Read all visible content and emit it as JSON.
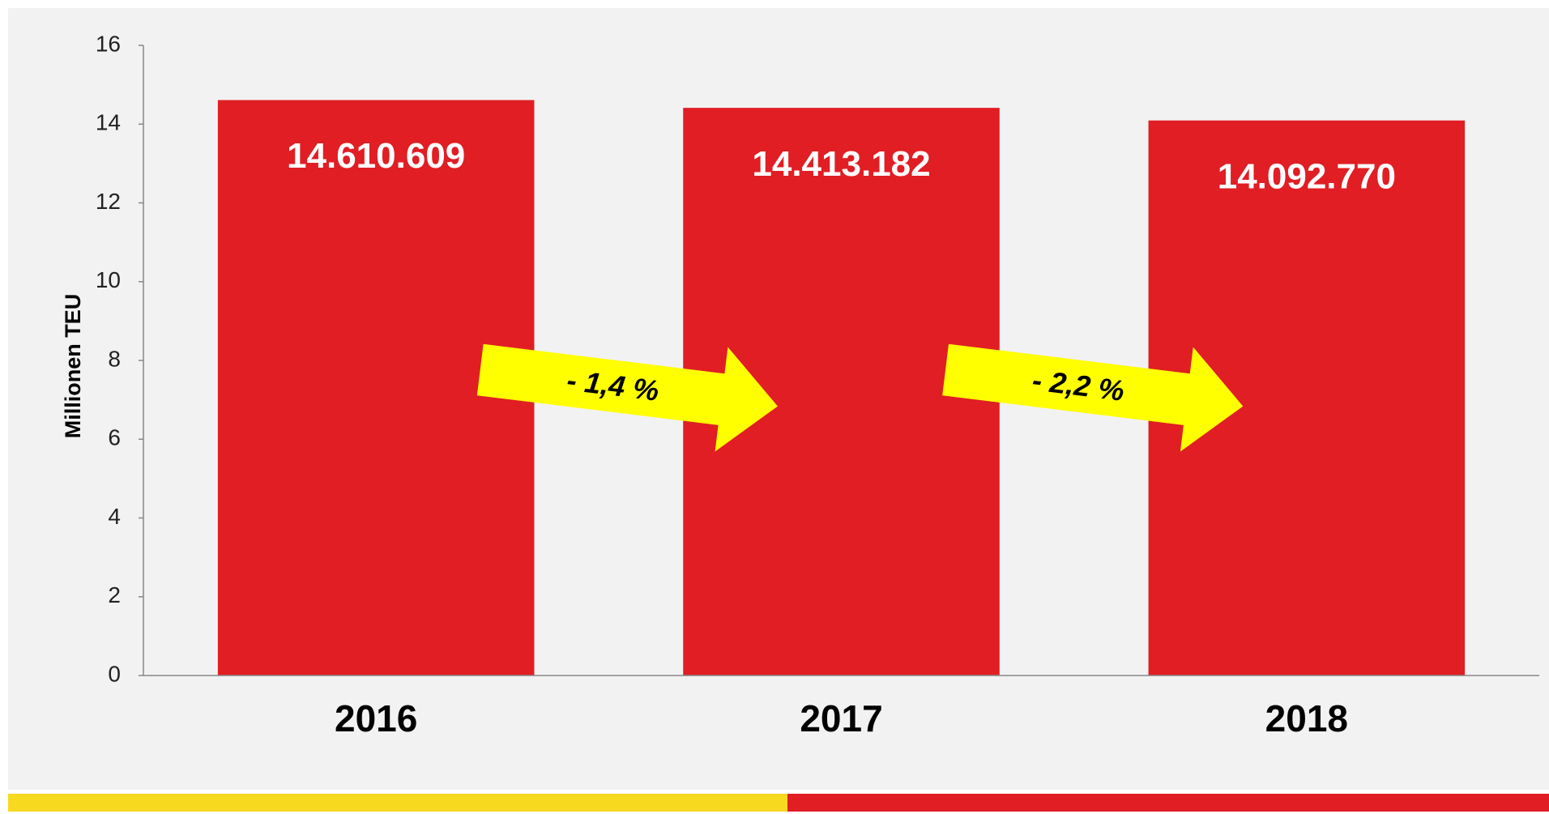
{
  "chart_data": {
    "type": "bar",
    "y_axis_label": "Millionen TEU",
    "categories": [
      "2016",
      "2017",
      "2018"
    ],
    "values": [
      14.610609,
      14.413182,
      14.09277
    ],
    "value_labels": [
      "14.610.609",
      "14.413.182",
      "14.092.770"
    ],
    "color": "#e01e24",
    "ylim": [
      0,
      16
    ],
    "yticks": [
      0,
      2,
      4,
      6,
      8,
      10,
      12,
      14,
      16
    ],
    "annotations": [
      {
        "text": "- 1,4 %",
        "color": "#ffff00"
      },
      {
        "text": "- 2,2 %",
        "color": "#ffff00"
      }
    ]
  }
}
